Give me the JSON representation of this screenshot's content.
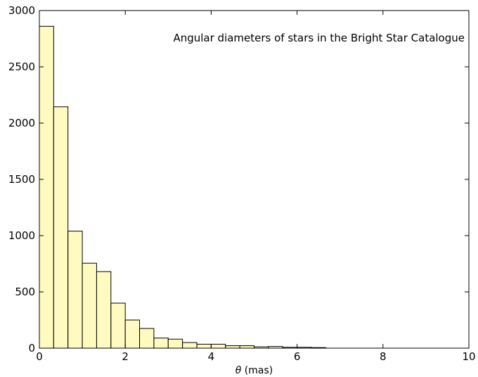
{
  "chart_data": {
    "type": "bar",
    "title": "",
    "annotation": "Angular diameters of stars in the Bright Star Catalogue",
    "xlabel_symbol": "θ",
    "xlabel_unit": " (mas)",
    "ylabel": "",
    "xlim": [
      0,
      10
    ],
    "ylim": [
      0,
      3000
    ],
    "xticks": [
      0,
      2,
      4,
      6,
      8,
      10
    ],
    "yticks": [
      0,
      500,
      1000,
      1500,
      2000,
      2500,
      3000
    ],
    "grid": false,
    "bin_width": 0.333,
    "bin_edges_start": [
      0.0,
      0.333,
      0.667,
      1.0,
      1.333,
      1.667,
      2.0,
      2.333,
      2.667,
      3.0,
      3.333,
      3.667,
      4.0,
      4.333,
      4.667,
      5.0,
      5.333,
      5.667,
      6.0,
      6.333
    ],
    "values": [
      2860,
      2145,
      1040,
      755,
      680,
      400,
      250,
      175,
      90,
      80,
      50,
      35,
      35,
      22,
      22,
      12,
      15,
      8,
      8,
      5
    ],
    "bar_color": "#fffac0",
    "edge_color": "#000000"
  }
}
